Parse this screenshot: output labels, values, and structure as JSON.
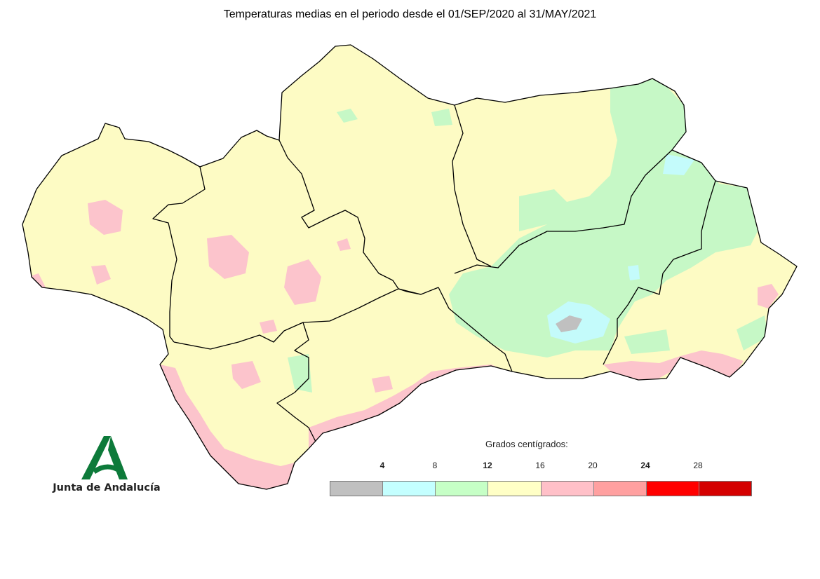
{
  "title": "Temperaturas medias en el periodo desde el 01/SEP/2020 al 31/MAY/2021",
  "logo": {
    "text": "Junta de Andalucía",
    "color": "#0d7a3a"
  },
  "legend": {
    "caption": "Grados centígrados:",
    "ticks": [
      {
        "label": "4",
        "bold": true
      },
      {
        "label": "8",
        "bold": false
      },
      {
        "label": "12",
        "bold": true
      },
      {
        "label": "16",
        "bold": false
      },
      {
        "label": "20",
        "bold": false
      },
      {
        "label": "24",
        "bold": true
      },
      {
        "label": "28",
        "bold": false
      }
    ],
    "colors": [
      "#c0c0c0",
      "#c4ffff",
      "#c6ffc6",
      "#ffffc6",
      "#ffc0c8",
      "#ffa0a0",
      "#ff0000",
      "#d40000"
    ]
  },
  "map_colors": {
    "temp_12_16": "#fdfbc4",
    "temp_8_12": "#c6f8c6",
    "temp_4_8": "#c4fbfb",
    "temp_below_4": "#c0c0c0",
    "temp_16_20": "#fcc4cc",
    "border": "#000000"
  }
}
